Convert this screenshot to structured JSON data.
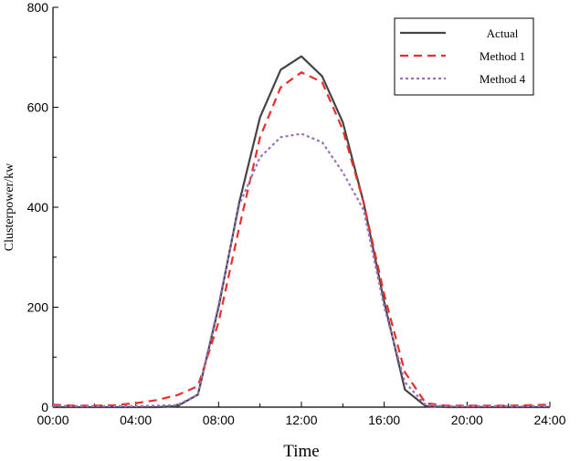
{
  "chart_data": {
    "type": "line",
    "title": "",
    "xlabel": "Time",
    "ylabel": "Clusterpower/kw",
    "x_ticks": [
      "00:00",
      "04:00",
      "08:00",
      "12:00",
      "16:00",
      "20:00",
      "24:00"
    ],
    "xlim": [
      0,
      24
    ],
    "ylim": [
      0,
      800
    ],
    "y_ticks": [
      0,
      200,
      400,
      600,
      800
    ],
    "grid": false,
    "legend_position": "top-right",
    "series": [
      {
        "name": "Actual",
        "color": "#444444",
        "style": "solid",
        "x": [
          0,
          1,
          2,
          3,
          4,
          5,
          6,
          7,
          8,
          9,
          10,
          11,
          12,
          13,
          14,
          15,
          16,
          17,
          18,
          19,
          20,
          21,
          22,
          23,
          24
        ],
        "y": [
          0,
          0,
          0,
          0,
          0,
          0,
          2,
          25,
          200,
          410,
          580,
          675,
          702,
          662,
          570,
          410,
          210,
          35,
          2,
          0,
          0,
          0,
          0,
          0,
          0
        ]
      },
      {
        "name": "Method 1",
        "color": "#e8302a",
        "style": "dashed",
        "x": [
          0,
          1,
          2,
          3,
          4,
          5,
          6,
          7,
          8,
          9,
          10,
          11,
          12,
          13,
          14,
          15,
          16,
          17,
          18,
          19,
          20,
          21,
          22,
          23,
          24
        ],
        "y": [
          5,
          3,
          3,
          4,
          8,
          14,
          24,
          42,
          170,
          360,
          540,
          640,
          670,
          650,
          555,
          410,
          225,
          70,
          8,
          3,
          3,
          3,
          3,
          4,
          5
        ]
      },
      {
        "name": "Method 4",
        "color": "#9b6fc0",
        "style": "dotted",
        "x": [
          0,
          1,
          2,
          3,
          4,
          5,
          6,
          7,
          8,
          9,
          10,
          11,
          12,
          13,
          14,
          15,
          16,
          17,
          18,
          19,
          20,
          21,
          22,
          23,
          24
        ],
        "y": [
          3,
          2,
          2,
          2,
          2,
          3,
          4,
          25,
          205,
          405,
          500,
          540,
          547,
          530,
          470,
          395,
          200,
          50,
          4,
          2,
          2,
          2,
          2,
          2,
          2
        ]
      }
    ]
  }
}
